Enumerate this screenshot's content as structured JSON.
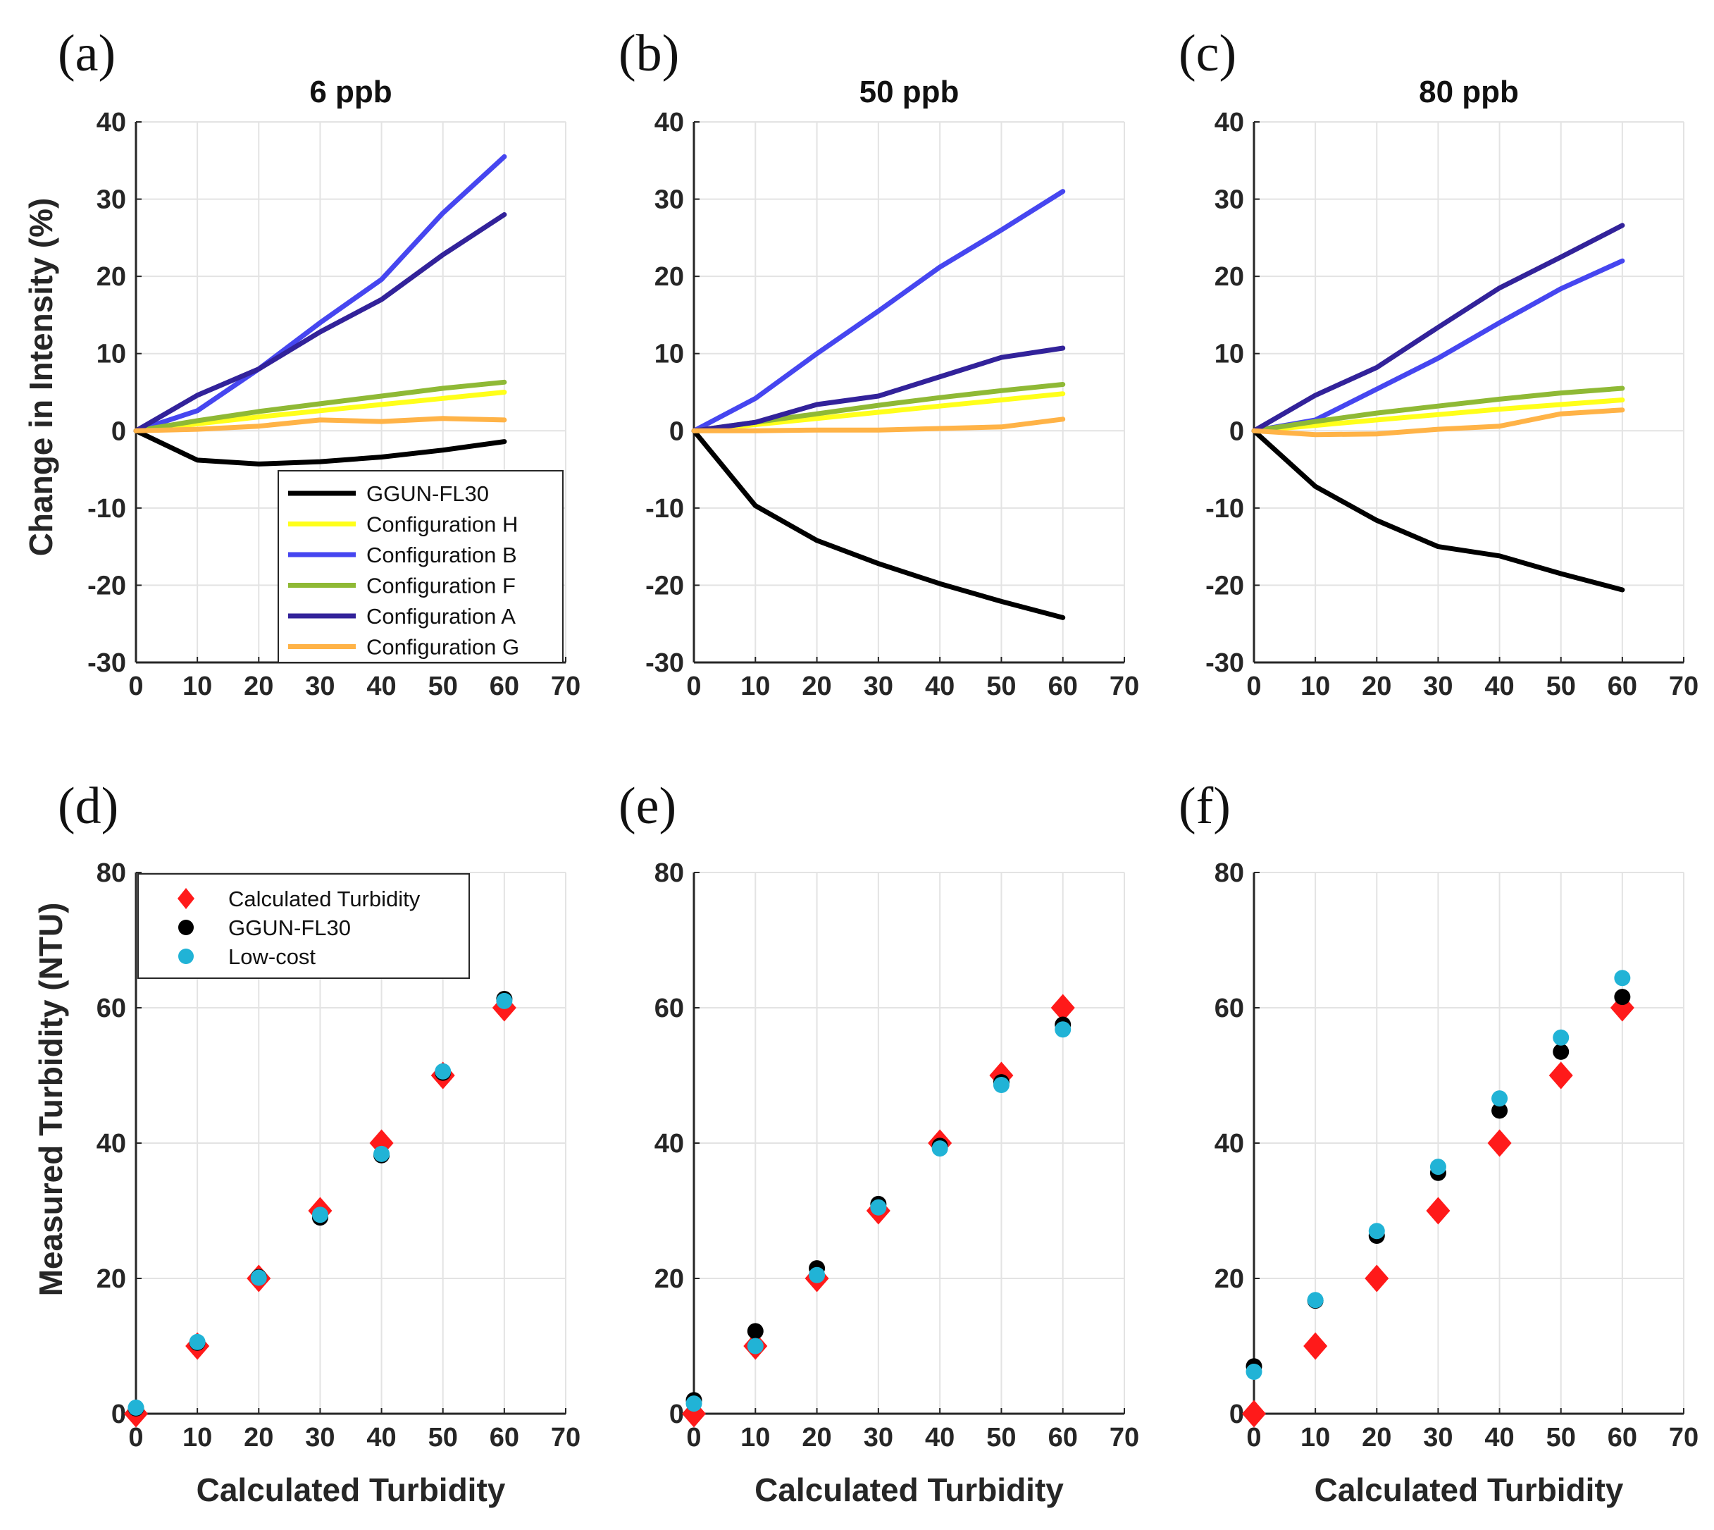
{
  "figure": {
    "top_ylabel": "Change in Intensity (%)",
    "bottom_ylabel": "Measured Turbidity (NTU)",
    "bottom_xlabel": "Calculated Turbidity"
  },
  "chart_data": [
    {
      "panel": "(a)",
      "type": "line",
      "title": "6 ppb",
      "xlabel": "",
      "ylabel": "Change in Intensity (%)",
      "xlim": [
        0,
        70
      ],
      "ylim": [
        -30,
        40
      ],
      "xticks": [
        "0",
        "10",
        "20",
        "30",
        "40",
        "50",
        "60",
        "70"
      ],
      "yticks": [
        "-30",
        "-20",
        "-10",
        "0",
        "10",
        "20",
        "30",
        "40"
      ],
      "grid": true,
      "legend_position": "bottom-right",
      "x": [
        0,
        10,
        20,
        30,
        40,
        50,
        60
      ],
      "series": [
        {
          "name": "GGUN-FL30",
          "color": "#000000",
          "values": [
            0,
            -3.8,
            -4.3,
            -4.0,
            -3.4,
            -2.5,
            -1.4
          ]
        },
        {
          "name": "Configuration H",
          "color": "#ffff1a",
          "values": [
            0,
            0.9,
            1.8,
            2.6,
            3.4,
            4.2,
            5.0
          ]
        },
        {
          "name": "Configuration B",
          "color": "#4646f0",
          "values": [
            0,
            2.6,
            8.0,
            14.0,
            19.6,
            28.2,
            35.5
          ]
        },
        {
          "name": "Configuration F",
          "color": "#8fb935",
          "values": [
            0,
            1.3,
            2.5,
            3.5,
            4.5,
            5.5,
            6.3
          ]
        },
        {
          "name": "Configuration A",
          "color": "#32229a",
          "values": [
            0,
            4.6,
            8.0,
            12.8,
            17.0,
            22.8,
            28.0
          ]
        },
        {
          "name": "Configuration G",
          "color": "#ffb347",
          "values": [
            0,
            0.2,
            0.6,
            1.4,
            1.2,
            1.6,
            1.4
          ]
        }
      ]
    },
    {
      "panel": "(b)",
      "type": "line",
      "title": "50 ppb",
      "xlabel": "",
      "ylabel": "",
      "xlim": [
        0,
        70
      ],
      "ylim": [
        -30,
        40
      ],
      "xticks": [
        "0",
        "10",
        "20",
        "30",
        "40",
        "50",
        "60",
        "70"
      ],
      "yticks": [
        "-30",
        "-20",
        "-10",
        "0",
        "10",
        "20",
        "30",
        "40"
      ],
      "grid": true,
      "x": [
        0,
        10,
        20,
        30,
        40,
        50,
        60
      ],
      "series": [
        {
          "name": "GGUN-FL30",
          "color": "#000000",
          "values": [
            0,
            -9.7,
            -14.2,
            -17.2,
            -19.8,
            -22.1,
            -24.2
          ]
        },
        {
          "name": "Configuration H",
          "color": "#ffff1a",
          "values": [
            0,
            0.8,
            1.6,
            2.4,
            3.2,
            4.0,
            4.8
          ]
        },
        {
          "name": "Configuration B",
          "color": "#4646f0",
          "values": [
            0,
            4.2,
            10.0,
            15.5,
            21.2,
            26.0,
            31.0
          ]
        },
        {
          "name": "Configuration F",
          "color": "#8fb935",
          "values": [
            0,
            1.1,
            2.2,
            3.3,
            4.3,
            5.2,
            6.0
          ]
        },
        {
          "name": "Configuration A",
          "color": "#32229a",
          "values": [
            0,
            1.1,
            3.4,
            4.5,
            7.0,
            9.5,
            10.7
          ]
        },
        {
          "name": "Configuration G",
          "color": "#ffb347",
          "values": [
            0,
            0.0,
            0.1,
            0.1,
            0.3,
            0.5,
            1.5
          ]
        }
      ]
    },
    {
      "panel": "(c)",
      "type": "line",
      "title": "80 ppb",
      "xlabel": "",
      "ylabel": "",
      "xlim": [
        0,
        70
      ],
      "ylim": [
        -30,
        40
      ],
      "xticks": [
        "0",
        "10",
        "20",
        "30",
        "40",
        "50",
        "60",
        "70"
      ],
      "yticks": [
        "-30",
        "-20",
        "-10",
        "0",
        "10",
        "20",
        "30",
        "40"
      ],
      "grid": true,
      "x": [
        0,
        10,
        20,
        30,
        40,
        50,
        60
      ],
      "series": [
        {
          "name": "GGUN-FL30",
          "color": "#000000",
          "values": [
            0,
            -7.2,
            -11.6,
            -15.0,
            -16.2,
            -18.5,
            -20.6
          ]
        },
        {
          "name": "Configuration H",
          "color": "#ffff1a",
          "values": [
            0,
            0.7,
            1.4,
            2.1,
            2.8,
            3.4,
            4.0
          ]
        },
        {
          "name": "Configuration B",
          "color": "#4646f0",
          "values": [
            0,
            1.4,
            5.4,
            9.4,
            14.0,
            18.4,
            22.0
          ]
        },
        {
          "name": "Configuration F",
          "color": "#8fb935",
          "values": [
            0,
            1.2,
            2.3,
            3.2,
            4.1,
            4.9,
            5.5
          ]
        },
        {
          "name": "Configuration A",
          "color": "#32229a",
          "values": [
            0,
            4.6,
            8.2,
            13.4,
            18.5,
            22.5,
            26.6
          ]
        },
        {
          "name": "Configuration G",
          "color": "#ffb347",
          "values": [
            0,
            -0.5,
            -0.4,
            0.2,
            0.6,
            2.2,
            2.7
          ]
        }
      ]
    },
    {
      "panel": "(d)",
      "type": "scatter",
      "title": "",
      "xlabel": "Calculated Turbidity",
      "ylabel": "Measured Turbidity (NTU)",
      "xlim": [
        0,
        70
      ],
      "ylim": [
        0,
        80
      ],
      "xticks": [
        "0",
        "10",
        "20",
        "30",
        "40",
        "50",
        "60",
        "70"
      ],
      "yticks": [
        "0",
        "20",
        "40",
        "60",
        "80"
      ],
      "grid": true,
      "legend_position": "top-left",
      "x": [
        0,
        10,
        20,
        30,
        40,
        50,
        60
      ],
      "series": [
        {
          "name": "Calculated Turbidity",
          "marker": "diamond",
          "color": "#ff1a1a",
          "values": [
            0,
            10,
            20,
            30,
            40,
            50,
            60
          ]
        },
        {
          "name": "GGUN-FL30",
          "marker": "circle",
          "color": "#000000",
          "values": [
            0.8,
            10.5,
            20.2,
            29.0,
            38.2,
            50.4,
            61.3
          ]
        },
        {
          "name": "Low-cost",
          "marker": "circle",
          "color": "#21b3d6",
          "values": [
            0.9,
            10.6,
            20.1,
            29.4,
            38.4,
            50.6,
            61.0
          ]
        }
      ]
    },
    {
      "panel": "(e)",
      "type": "scatter",
      "title": "",
      "xlabel": "Calculated Turbidity",
      "ylabel": "",
      "xlim": [
        0,
        70
      ],
      "ylim": [
        0,
        80
      ],
      "xticks": [
        "0",
        "10",
        "20",
        "30",
        "40",
        "50",
        "60",
        "70"
      ],
      "yticks": [
        "0",
        "20",
        "40",
        "60",
        "80"
      ],
      "grid": true,
      "x": [
        0,
        10,
        20,
        30,
        40,
        50,
        60
      ],
      "series": [
        {
          "name": "Calculated Turbidity",
          "marker": "diamond",
          "color": "#ff1a1a",
          "values": [
            0,
            10,
            20,
            30,
            40,
            50,
            60
          ]
        },
        {
          "name": "GGUN-FL30",
          "marker": "circle",
          "color": "#000000",
          "values": [
            2.0,
            12.2,
            21.5,
            31.0,
            39.6,
            49.0,
            57.5
          ]
        },
        {
          "name": "Low-cost",
          "marker": "circle",
          "color": "#21b3d6",
          "values": [
            1.5,
            10.0,
            20.5,
            30.5,
            39.2,
            48.6,
            56.8
          ]
        }
      ]
    },
    {
      "panel": "(f)",
      "type": "scatter",
      "title": "",
      "xlabel": "Calculated Turbidity",
      "ylabel": "",
      "xlim": [
        0,
        70
      ],
      "ylim": [
        0,
        80
      ],
      "xticks": [
        "0",
        "10",
        "20",
        "30",
        "40",
        "50",
        "60",
        "70"
      ],
      "yticks": [
        "0",
        "20",
        "40",
        "60",
        "80"
      ],
      "grid": true,
      "x": [
        0,
        10,
        20,
        30,
        40,
        50,
        60
      ],
      "series": [
        {
          "name": "Calculated Turbidity",
          "marker": "diamond",
          "color": "#ff1a1a",
          "values": [
            0,
            10,
            20,
            30,
            40,
            50,
            60
          ]
        },
        {
          "name": "GGUN-FL30",
          "marker": "circle",
          "color": "#000000",
          "values": [
            7.0,
            16.7,
            26.3,
            35.6,
            44.8,
            53.5,
            61.6
          ]
        },
        {
          "name": "Low-cost",
          "marker": "circle",
          "color": "#21b3d6",
          "values": [
            6.2,
            16.8,
            27.0,
            36.5,
            46.6,
            55.6,
            64.4
          ]
        }
      ]
    }
  ]
}
